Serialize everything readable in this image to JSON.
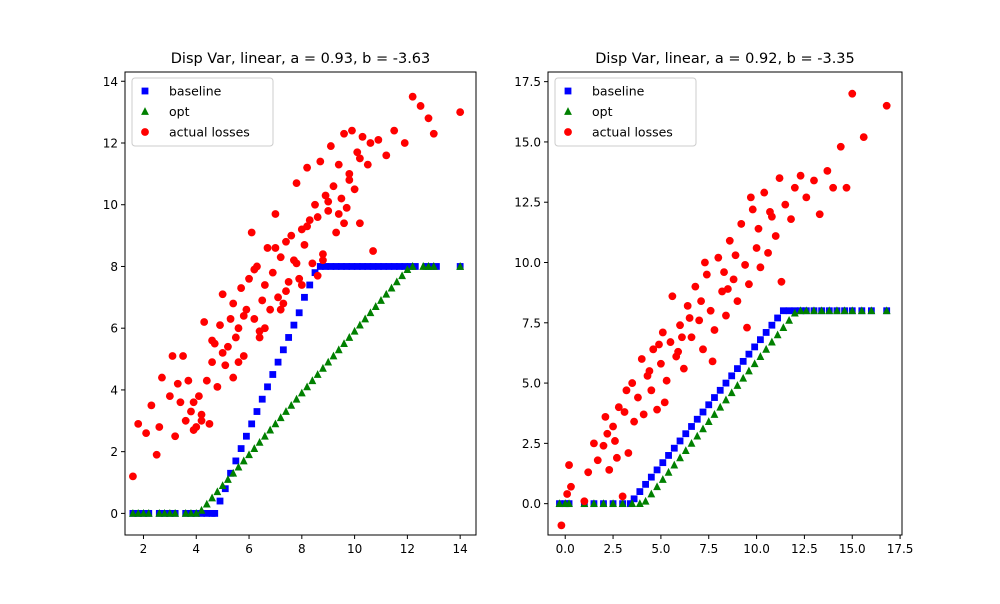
{
  "chart_data": [
    {
      "type": "scatter",
      "title": "Disp Var, linear, a = 0.93, b = -3.63",
      "xlabel": "",
      "ylabel": "",
      "xlim": [
        1.3,
        14.6
      ],
      "ylim": [
        -0.7,
        14.3
      ],
      "xticks": [
        2,
        4,
        6,
        8,
        10,
        12,
        14
      ],
      "xtick_labels": [
        "2",
        "4",
        "6",
        "8",
        "10",
        "12",
        "14"
      ],
      "yticks": [
        0,
        2,
        4,
        6,
        8,
        10,
        12,
        14
      ],
      "ytick_labels": [
        "0",
        "2",
        "4",
        "6",
        "8",
        "10",
        "12",
        "14"
      ],
      "grid": false,
      "legend_position": "top-left",
      "legend": [
        "baseline",
        "opt",
        "actual losses"
      ],
      "series": [
        {
          "name": "baseline",
          "marker": "square",
          "color": "#0000ff",
          "x": [
            1.6,
            1.8,
            2.0,
            2.2,
            2.6,
            2.8,
            3.0,
            3.2,
            3.6,
            3.8,
            4.0,
            4.2,
            4.4,
            4.6,
            4.7,
            4.9,
            5.1,
            5.3,
            5.5,
            5.7,
            5.9,
            6.1,
            6.3,
            6.5,
            6.7,
            6.9,
            7.1,
            7.3,
            7.5,
            7.7,
            7.9,
            8.1,
            8.3,
            8.5,
            8.7,
            8.9,
            9.1,
            9.3,
            9.5,
            9.7,
            9.9,
            10.1,
            10.3,
            10.5,
            10.7,
            10.9,
            11.1,
            11.3,
            11.5,
            11.7,
            11.9,
            12.1,
            12.3,
            12.7,
            12.9,
            13.1,
            14.0
          ],
          "y": [
            0,
            0,
            0,
            0,
            0,
            0,
            0,
            0,
            0,
            0,
            0,
            0,
            0,
            0,
            0.0,
            0.4,
            0.8,
            1.3,
            1.7,
            2.1,
            2.5,
            2.9,
            3.3,
            3.7,
            4.1,
            4.5,
            4.9,
            5.3,
            5.7,
            6.1,
            6.5,
            7.0,
            7.4,
            7.8,
            8.0,
            8.0,
            8.0,
            8.0,
            8.0,
            8.0,
            8.0,
            8.0,
            8.0,
            8.0,
            8.0,
            8.0,
            8.0,
            8.0,
            8.0,
            8.0,
            8.0,
            8.0,
            8.0,
            8.0,
            8.0,
            8.0,
            8.0
          ]
        },
        {
          "name": "opt",
          "marker": "triangle",
          "color": "#008000",
          "x": [
            1.6,
            1.8,
            2.0,
            2.2,
            2.6,
            2.8,
            3.0,
            3.2,
            3.6,
            3.8,
            4.0,
            4.2,
            4.4,
            4.6,
            4.8,
            5.0,
            5.2,
            5.4,
            5.6,
            5.8,
            6.0,
            6.2,
            6.4,
            6.6,
            6.8,
            7.0,
            7.2,
            7.4,
            7.6,
            7.8,
            8.0,
            8.2,
            8.4,
            8.6,
            8.8,
            9.0,
            9.2,
            9.4,
            9.6,
            9.8,
            10.0,
            10.2,
            10.4,
            10.6,
            10.8,
            11.0,
            11.2,
            11.4,
            11.6,
            11.8,
            12.0,
            12.2,
            12.6,
            12.8,
            13.0,
            14.0
          ],
          "y": [
            0,
            0,
            0,
            0,
            0,
            0,
            0,
            0,
            0,
            0,
            0,
            0.1,
            0.3,
            0.5,
            0.7,
            0.9,
            1.1,
            1.3,
            1.5,
            1.7,
            1.9,
            2.1,
            2.3,
            2.5,
            2.7,
            2.9,
            3.1,
            3.3,
            3.5,
            3.7,
            3.9,
            4.1,
            4.3,
            4.5,
            4.7,
            4.9,
            5.1,
            5.3,
            5.5,
            5.7,
            5.9,
            6.1,
            6.3,
            6.5,
            6.7,
            6.9,
            7.1,
            7.3,
            7.5,
            7.7,
            7.9,
            8.0,
            8.0,
            8.0,
            8.0,
            8.0
          ]
        },
        {
          "name": "actual losses",
          "marker": "circle",
          "color": "#ff0000",
          "x": [
            1.6,
            1.8,
            2.1,
            2.3,
            2.5,
            2.6,
            2.7,
            3.0,
            3.1,
            3.2,
            3.3,
            3.4,
            3.5,
            3.6,
            3.7,
            3.8,
            3.9,
            4.0,
            4.1,
            4.2,
            4.3,
            4.4,
            4.5,
            4.6,
            4.7,
            4.8,
            4.9,
            5.0,
            5.1,
            5.2,
            5.3,
            5.4,
            5.5,
            5.6,
            5.7,
            5.8,
            5.9,
            6.0,
            6.1,
            6.2,
            6.3,
            6.4,
            6.5,
            6.6,
            6.7,
            6.8,
            6.9,
            7.0,
            7.1,
            7.2,
            7.3,
            7.4,
            7.5,
            7.6,
            7.7,
            7.8,
            7.9,
            8.0,
            8.1,
            8.2,
            8.3,
            8.4,
            8.5,
            8.6,
            8.7,
            8.8,
            8.9,
            9.0,
            9.1,
            9.2,
            9.3,
            9.4,
            9.5,
            9.6,
            9.7,
            9.8,
            9.9,
            10.0,
            10.1,
            10.2,
            10.3,
            10.5,
            10.7,
            10.9,
            11.2,
            11.5,
            11.9,
            12.2,
            12.5,
            12.8,
            13.0,
            14.0,
            4.2,
            4.6,
            5.0,
            5.4,
            5.8,
            6.2,
            6.6,
            7.0,
            7.4,
            7.8,
            8.2,
            8.6,
            9.0,
            9.4,
            9.8,
            10.2,
            10.6,
            3.9,
            5.6,
            6.4,
            7.2,
            8.0,
            8.8,
            9.6
          ],
          "y": [
            1.2,
            2.9,
            2.6,
            3.5,
            1.9,
            2.8,
            4.4,
            3.8,
            5.1,
            2.5,
            4.2,
            3.6,
            5.1,
            3.0,
            4.3,
            3.3,
            3.6,
            2.8,
            3.8,
            3.2,
            6.2,
            4.3,
            2.9,
            4.9,
            5.5,
            4.1,
            6.1,
            7.1,
            4.8,
            5.4,
            6.3,
            4.4,
            5.7,
            6.0,
            7.3,
            5.1,
            6.6,
            7.6,
            9.1,
            6.3,
            8.0,
            5.7,
            6.9,
            7.4,
            8.6,
            6.6,
            7.8,
            9.7,
            7.0,
            8.3,
            6.8,
            8.8,
            7.5,
            9.0,
            8.2,
            10.7,
            7.6,
            9.2,
            8.7,
            11.2,
            9.5,
            8.1,
            10.0,
            9.6,
            11.4,
            8.4,
            10.3,
            9.8,
            11.9,
            10.6,
            9.1,
            11.3,
            10.2,
            12.3,
            9.9,
            11.0,
            12.4,
            10.5,
            11.7,
            9.4,
            12.2,
            11.3,
            8.5,
            12.1,
            11.6,
            12.4,
            12.0,
            13.5,
            13.2,
            12.8,
            12.3,
            13.0,
            3.0,
            5.6,
            5.2,
            6.8,
            6.4,
            7.9,
            6.0,
            8.6,
            7.2,
            8.1,
            9.3,
            7.7,
            10.1,
            9.7,
            10.8,
            11.5,
            12.0,
            2.7,
            4.9,
            5.9,
            6.6,
            7.4,
            8.2,
            9.4
          ]
        }
      ]
    },
    {
      "type": "scatter",
      "title": "Disp Var, linear, a = 0.92, b = -3.35",
      "xlabel": "",
      "ylabel": "",
      "xlim": [
        -0.9,
        17.6
      ],
      "ylim": [
        -1.3,
        17.9
      ],
      "xticks": [
        0,
        2.5,
        5,
        7.5,
        10,
        12.5,
        15,
        17.5
      ],
      "xtick_labels": [
        "0.0",
        "2.5",
        "5.0",
        "7.5",
        "10.0",
        "12.5",
        "15.0",
        "17.5"
      ],
      "yticks": [
        0,
        2.5,
        5,
        7.5,
        10,
        12.5,
        15,
        17.5
      ],
      "ytick_labels": [
        "0.0",
        "2.5",
        "5.0",
        "7.5",
        "10.0",
        "12.5",
        "15.0",
        "17.5"
      ],
      "grid": false,
      "legend_position": "top-left",
      "legend": [
        "baseline",
        "opt",
        "actual losses"
      ],
      "series": [
        {
          "name": "baseline",
          "marker": "square",
          "color": "#0000ff",
          "x": [
            -0.3,
            0.0,
            0.2,
            1.0,
            1.5,
            2.0,
            2.5,
            3.0,
            3.4,
            3.6,
            3.9,
            4.2,
            4.5,
            4.8,
            5.1,
            5.4,
            5.7,
            6.0,
            6.3,
            6.6,
            6.9,
            7.2,
            7.5,
            7.8,
            8.1,
            8.4,
            8.7,
            9.0,
            9.3,
            9.6,
            9.9,
            10.2,
            10.5,
            10.8,
            11.1,
            11.4,
            11.7,
            12.0,
            12.3,
            12.6,
            13.0,
            13.4,
            13.8,
            14.2,
            14.6,
            15.0,
            15.5,
            16.0,
            16.8
          ],
          "y": [
            0,
            0,
            0,
            0,
            0,
            0,
            0,
            0,
            0,
            0.2,
            0.5,
            0.8,
            1.1,
            1.4,
            1.7,
            2.0,
            2.3,
            2.6,
            2.9,
            3.2,
            3.5,
            3.8,
            4.1,
            4.4,
            4.7,
            5.0,
            5.3,
            5.6,
            5.9,
            6.2,
            6.5,
            6.8,
            7.1,
            7.4,
            7.7,
            8.0,
            8.0,
            8.0,
            8.0,
            8.0,
            8.0,
            8.0,
            8.0,
            8.0,
            8.0,
            8.0,
            8.0,
            8.0,
            8.0
          ]
        },
        {
          "name": "opt",
          "marker": "triangle",
          "color": "#008000",
          "x": [
            -0.3,
            0.0,
            0.2,
            1.0,
            1.5,
            2.0,
            2.5,
            3.0,
            3.5,
            3.9,
            4.2,
            4.5,
            4.8,
            5.1,
            5.4,
            5.7,
            6.0,
            6.3,
            6.6,
            6.9,
            7.2,
            7.5,
            7.8,
            8.1,
            8.4,
            8.7,
            9.0,
            9.3,
            9.6,
            9.9,
            10.2,
            10.5,
            10.8,
            11.1,
            11.4,
            11.7,
            12.0,
            12.3,
            12.6,
            13.0,
            13.4,
            13.8,
            14.2,
            14.6,
            15.0,
            15.5,
            16.0,
            16.8
          ],
          "y": [
            0,
            0,
            0,
            0,
            0,
            0,
            0,
            0,
            0,
            0,
            0.1,
            0.4,
            0.7,
            1.0,
            1.3,
            1.6,
            1.9,
            2.2,
            2.5,
            2.8,
            3.1,
            3.4,
            3.7,
            4.0,
            4.3,
            4.6,
            4.9,
            5.2,
            5.5,
            5.8,
            6.1,
            6.4,
            6.7,
            7.0,
            7.3,
            7.6,
            7.9,
            8.0,
            8.0,
            8.0,
            8.0,
            8.0,
            8.0,
            8.0,
            8.0,
            8.0,
            8.0,
            8.0
          ]
        },
        {
          "name": "actual losses",
          "marker": "circle",
          "color": "#ff0000",
          "x": [
            -0.2,
            0.1,
            0.2,
            0.3,
            1.0,
            1.2,
            1.5,
            1.7,
            2.0,
            2.1,
            2.3,
            2.5,
            2.6,
            2.8,
            3.0,
            3.1,
            3.3,
            3.5,
            3.6,
            3.8,
            4.0,
            4.1,
            4.3,
            4.5,
            4.6,
            4.8,
            5.0,
            5.1,
            5.3,
            5.5,
            5.6,
            5.8,
            6.0,
            6.2,
            6.4,
            6.6,
            6.8,
            7.0,
            7.2,
            7.4,
            7.6,
            7.8,
            8.0,
            8.2,
            8.4,
            8.6,
            8.8,
            9.0,
            9.2,
            9.4,
            9.6,
            9.8,
            10.0,
            10.2,
            10.4,
            10.6,
            10.8,
            11.0,
            11.2,
            11.5,
            11.8,
            12.0,
            12.3,
            12.6,
            13.0,
            13.3,
            13.7,
            14.0,
            14.4,
            14.7,
            15.0,
            15.6,
            16.8,
            2.2,
            3.2,
            4.4,
            5.2,
            5.9,
            6.5,
            7.1,
            7.7,
            8.3,
            8.9,
            9.5,
            10.1,
            10.7,
            11.3,
            2.7,
            4.9,
            6.1,
            7.3,
            8.5,
            9.7
          ],
          "y": [
            -0.9,
            0.4,
            1.6,
            0.7,
            0.1,
            1.3,
            2.5,
            1.8,
            2.4,
            3.6,
            1.4,
            3.2,
            2.6,
            4.0,
            0.3,
            3.8,
            2.1,
            5.0,
            3.4,
            4.4,
            6.0,
            3.7,
            5.3,
            4.7,
            6.4,
            3.9,
            5.8,
            7.1,
            5.1,
            6.7,
            8.6,
            6.1,
            7.4,
            5.6,
            8.2,
            6.9,
            9.0,
            7.6,
            6.4,
            9.5,
            8.0,
            7.2,
            10.2,
            8.8,
            7.8,
            10.9,
            9.3,
            8.4,
            11.6,
            9.9,
            9.1,
            12.2,
            10.6,
            9.8,
            12.9,
            10.4,
            11.9,
            11.1,
            13.5,
            12.4,
            11.8,
            13.1,
            13.6,
            12.7,
            13.4,
            12.0,
            13.8,
            13.1,
            14.8,
            13.1,
            17.0,
            15.2,
            16.5,
            2.9,
            4.7,
            5.5,
            4.2,
            6.3,
            7.7,
            8.4,
            5.9,
            9.6,
            10.3,
            7.3,
            11.4,
            12.1,
            9.2,
            1.9,
            6.6,
            6.9,
            10.0,
            8.9,
            12.7
          ]
        }
      ]
    }
  ]
}
